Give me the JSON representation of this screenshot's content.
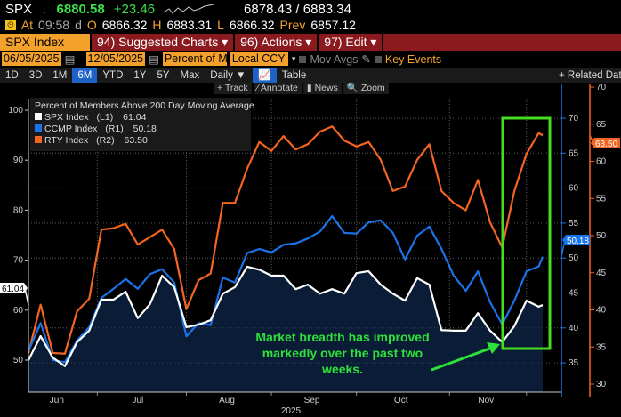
{
  "header": {
    "ticker": "SPX",
    "arrow": "↓",
    "last": "6880.58",
    "change": "+23.46",
    "bid_ask": "6878.43 / 6883.34",
    "at_label": "At",
    "time": "09:58",
    "d": "d",
    "o_label": "O",
    "open": "6866.32",
    "h_label": "H",
    "high": "6883.31",
    "l_label": "L",
    "low": "6866.32",
    "prev_label": "Prev",
    "prev": "6857.12"
  },
  "menubar": {
    "security": "SPX Index",
    "suggested": "94) Suggested Charts ▾",
    "actions": "96) Actions ▾",
    "edit": "97) Edit ▾"
  },
  "controls": {
    "start_date": "06/05/2025",
    "sep": "-",
    "end_date": "12/05/2025",
    "field": "Percent of Me",
    "currency": "Local CCY",
    "mov_avgs": "Mov Avgs",
    "key_events": "Key Events"
  },
  "tabs": [
    {
      "label": "1D"
    },
    {
      "label": "3D"
    },
    {
      "label": "1M"
    },
    {
      "label": "6M",
      "active": true
    },
    {
      "label": "YTD"
    },
    {
      "label": "1Y"
    },
    {
      "label": "5Y"
    },
    {
      "label": "Max"
    },
    {
      "label": "Daily ▼"
    },
    {
      "label": "📈"
    },
    {
      "label": "Table"
    }
  ],
  "related": "+ Related Data",
  "toolbar": {
    "track": "+ Track",
    "annotate": "⁄ Annotate",
    "news": "▮ News",
    "zoom": "🔍 Zoom"
  },
  "annotation": "Market breadth has improved markedly over the past two weeks.",
  "chart_data": {
    "type": "line",
    "title": "Percent of Members Above 200 Day Moving Average",
    "x": [
      "2025-06-05",
      "2025-06-10",
      "2025-06-13",
      "2025-06-18",
      "2025-06-24",
      "2025-06-27",
      "2025-07-02",
      "2025-07-08",
      "2025-07-11",
      "2025-07-16",
      "2025-07-21",
      "2025-07-24",
      "2025-07-29",
      "2025-08-01",
      "2025-08-06",
      "2025-08-11",
      "2025-08-14",
      "2025-08-19",
      "2025-08-22",
      "2025-08-27",
      "2025-09-02",
      "2025-09-05",
      "2025-09-10",
      "2025-09-15",
      "2025-09-18",
      "2025-09-23",
      "2025-09-26",
      "2025-10-01",
      "2025-10-06",
      "2025-10-09",
      "2025-10-14",
      "2025-10-17",
      "2025-10-22",
      "2025-10-27",
      "2025-10-30",
      "2025-11-04",
      "2025-11-07",
      "2025-11-12",
      "2025-11-17",
      "2025-11-20",
      "2025-11-25",
      "2025-12-01",
      "2025-12-04",
      "2025-12-05"
    ],
    "x_ticks": [
      "Jun",
      "Jul",
      "Aug",
      "Sep",
      "Oct",
      "Nov"
    ],
    "x_year": "2025",
    "series": [
      {
        "name": "SPX Index",
        "axis": "L1",
        "color": "#ffffff",
        "last": "61.04",
        "values": [
          50.0,
          54.8,
          50.5,
          48.8,
          53.6,
          55.9,
          62.1,
          62.1,
          63.7,
          58.4,
          61.2,
          66.9,
          64.6,
          56.6,
          57.1,
          58.0,
          63.3,
          64.6,
          68.7,
          68.1,
          66.9,
          66.9,
          64.2,
          65.1,
          63.3,
          64.2,
          63.3,
          67.4,
          67.8,
          65.1,
          63.3,
          61.9,
          66.4,
          65.1,
          56.0,
          55.9,
          55.9,
          59.4,
          55.9,
          53.6,
          56.8,
          61.9,
          60.7,
          61.04
        ]
      },
      {
        "name": "CCMP Index",
        "axis": "R1",
        "color": "#1a73e8",
        "last": "50.18",
        "values": [
          36.7,
          40.7,
          35.4,
          35.1,
          38.2,
          40.1,
          44.3,
          45.6,
          47.0,
          45.6,
          47.7,
          48.4,
          46.5,
          38.8,
          40.7,
          40.4,
          47.2,
          46.5,
          50.7,
          51.3,
          50.8,
          51.9,
          52.1,
          52.8,
          53.8,
          56.0,
          53.6,
          53.5,
          55.1,
          55.4,
          53.6,
          49.8,
          53.2,
          54.5,
          51.3,
          47.5,
          45.3,
          48.1,
          43.7,
          40.5,
          43.9,
          48.1,
          48.8,
          50.18
        ]
      },
      {
        "name": "RTY Index",
        "axis": "R2",
        "color": "#f26522",
        "last": "63.50",
        "values": [
          34.2,
          40.7,
          34.2,
          34.1,
          39.8,
          41.5,
          50.8,
          51.0,
          51.6,
          48.8,
          49.8,
          50.8,
          48.2,
          40.1,
          44.0,
          44.9,
          54.4,
          54.4,
          59.0,
          62.6,
          61.4,
          63.4,
          61.6,
          62.3,
          64.0,
          64.7,
          62.8,
          62.0,
          62.6,
          60.2,
          56.0,
          56.6,
          60.2,
          62.3,
          56.0,
          54.4,
          53.4,
          57.5,
          51.8,
          48.4,
          56.0,
          61.0,
          63.8,
          63.5
        ]
      }
    ],
    "axes": {
      "L1": {
        "ticks": [
          50,
          60,
          70,
          80,
          90,
          100
        ],
        "ylim": [
          43.5,
          103.5
        ]
      },
      "R1": {
        "ticks": [
          35,
          40,
          45,
          50,
          55,
          60,
          65,
          70
        ],
        "ylim": [
          30.8,
          71
        ]
      },
      "R2": {
        "ticks": [
          30,
          35,
          40,
          45,
          50,
          55,
          60,
          65,
          70
        ],
        "ylim": [
          29.5,
          70
        ]
      }
    },
    "grid": true,
    "legend": "top-left",
    "highlight_box": {
      "from": "2025-11-20",
      "to": "2025-12-05",
      "color": "#44dd22"
    },
    "area_fill": "#0b1d36"
  }
}
